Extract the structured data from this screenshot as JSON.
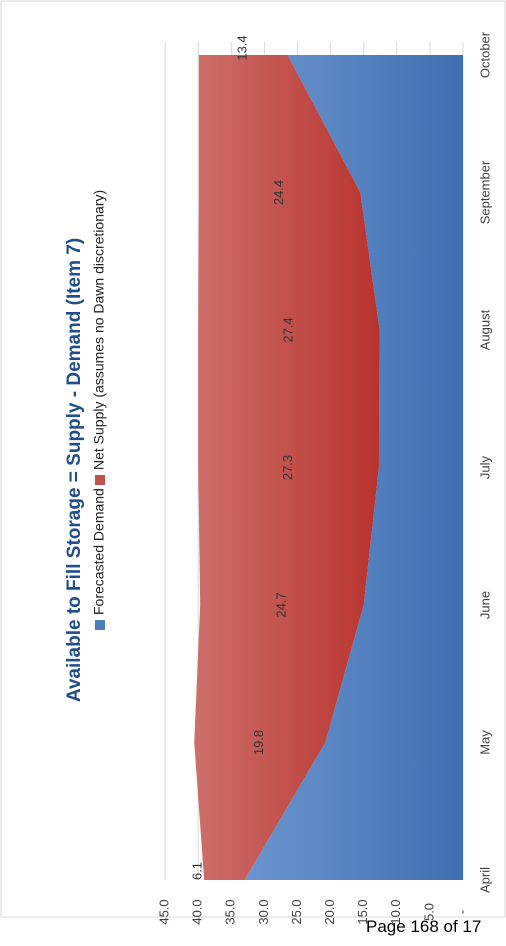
{
  "chart_data": {
    "type": "area",
    "stacked": true,
    "orientation": "rotated-90-ccw",
    "title": "Available to Fill Storage = Supply - Demand (Item 7)",
    "categories": [
      "April",
      "May",
      "June",
      "July",
      "August",
      "September",
      "October"
    ],
    "series": [
      {
        "name": "Forecasted Demand",
        "color": "#4a7ebf",
        "values": [
          33.0,
          20.8,
          15.0,
          12.7,
          12.6,
          15.5,
          26.5
        ]
      },
      {
        "name": "Net Supply (assumes no Dawn discretionary)",
        "color": "#c0504d",
        "values": [
          6.1,
          19.8,
          24.7,
          27.3,
          27.4,
          24.4,
          13.4
        ],
        "data_labels": [
          "6.1",
          "19.8",
          "24.7",
          "27.3",
          "27.4",
          "24.4",
          "13.4"
        ]
      }
    ],
    "y_ticks": [
      "-",
      "5.0",
      "10.0",
      "15.0",
      "20.0",
      "25.0",
      "30.0",
      "35.0",
      "40.0",
      "45.0"
    ],
    "ylim": [
      0,
      45
    ],
    "legend_position": "top",
    "grid": true
  },
  "footer": {
    "page_text": "Page 168 of 17"
  }
}
